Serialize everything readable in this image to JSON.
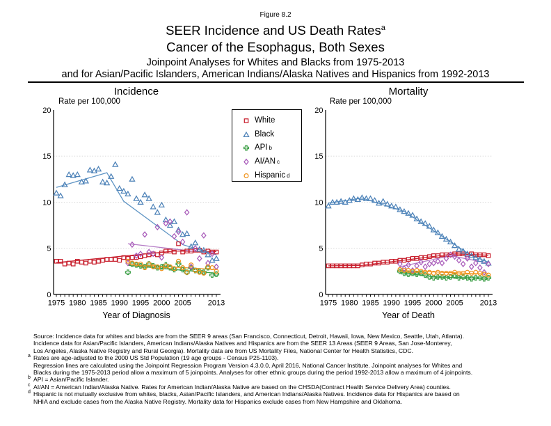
{
  "figure": {
    "label": "Figure 8.2",
    "title_line1": "SEER Incidence and US Death Rates",
    "title_sup": "a",
    "title_line2": "Cancer of the Esophagus, Both Sexes",
    "subtitle_line1": "Joinpoint Analyses for Whites and Blacks from 1975-2013",
    "subtitle_line2": "and for Asian/Pacific Islanders, American Indians/Alaska Natives and Hispanics from 1992-2013"
  },
  "legend": {
    "position": "top-center between charts",
    "items": [
      {
        "label": "White",
        "sup": "",
        "marker": "square",
        "color": "#c8202e"
      },
      {
        "label": "Black",
        "sup": "",
        "marker": "triangle",
        "color": "#4d82b8"
      },
      {
        "label": "API",
        "sup": "b",
        "marker": "plus",
        "color": "#3fa049"
      },
      {
        "label": "AI/AN",
        "sup": "c",
        "marker": "diamond",
        "color": "#a95cba"
      },
      {
        "label": "Hispanic",
        "sup": "d",
        "marker": "circle",
        "color": "#f0941f"
      }
    ]
  },
  "chart_data": [
    {
      "type": "scatter",
      "title": "Incidence",
      "ylabel": "Rate per 100,000",
      "xlabel": "Year of Diagnosis",
      "ylim": [
        0,
        20
      ],
      "yticks": [
        0,
        5,
        10,
        15,
        20
      ],
      "xlim": [
        1975,
        2013
      ],
      "xtick_labels": [
        1975,
        1980,
        1985,
        1990,
        1995,
        2000,
        2005,
        2013
      ],
      "grid": "horizontal dotted lines at 5, 10, 15",
      "series": [
        {
          "name": "White",
          "marker": "square",
          "color": "#c8202e",
          "start_year": 1975,
          "values": [
            3.6,
            3.6,
            3.3,
            3.4,
            3.3,
            3.6,
            3.5,
            3.4,
            3.6,
            3.5,
            3.6,
            3.7,
            3.8,
            3.8,
            3.8,
            3.7,
            4.0,
            3.9,
            4.0,
            4.0,
            4.1,
            4.2,
            4.3,
            4.4,
            4.3,
            4.5,
            4.7,
            4.7,
            4.6,
            5.5,
            4.6,
            4.7,
            4.7,
            4.8,
            4.8,
            4.6,
            4.7,
            4.6,
            4.6
          ]
        },
        {
          "name": "Black",
          "marker": "triangle",
          "color": "#4d82b8",
          "start_year": 1975,
          "values": [
            11.0,
            10.7,
            11.9,
            13.0,
            12.9,
            13.0,
            12.2,
            12.3,
            13.5,
            13.4,
            13.6,
            12.2,
            12.1,
            12.8,
            14.1,
            11.5,
            11.2,
            10.9,
            12.5,
            10.4,
            10.0,
            10.8,
            10.4,
            9.5,
            8.9,
            9.7,
            8.1,
            7.5,
            7.9,
            7.0,
            6.5,
            6.6,
            5.2,
            5.6,
            4.9,
            4.8,
            4.3,
            3.7,
            3.9
          ]
        },
        {
          "name": "API",
          "marker": "plus",
          "color": "#3fa049",
          "start_year": 1992,
          "values": [
            2.4,
            3.3,
            3.2,
            3.1,
            3.0,
            3.3,
            3.1,
            2.9,
            3.0,
            3.2,
            2.9,
            2.7,
            3.3,
            2.7,
            2.4,
            2.9,
            2.6,
            2.5,
            2.4,
            2.9,
            2.1,
            2.2
          ]
        },
        {
          "name": "AI/AN",
          "marker": "diamond",
          "color": "#a95cba",
          "start_year": 1992,
          "values": [
            3.4,
            5.4,
            4.2,
            4.4,
            6.5,
            4.6,
            4.4,
            7.3,
            4.0,
            7.7,
            7.9,
            6.3,
            6.8,
            5.7,
            8.9,
            3.0,
            5.0,
            3.9,
            6.4,
            3.4,
            4.4,
            3.0
          ]
        },
        {
          "name": "Hispanic",
          "marker": "circle",
          "color": "#f0941f",
          "start_year": 1992,
          "values": [
            3.6,
            3.4,
            3.3,
            3.3,
            2.9,
            3.3,
            3.0,
            3.0,
            2.8,
            3.1,
            3.0,
            2.8,
            3.6,
            2.9,
            2.4,
            3.2,
            2.6,
            2.4,
            2.3,
            3.0,
            2.9,
            2.5
          ]
        }
      ],
      "trend_lines": [
        {
          "name": "White joinpoint",
          "color": "#c8202e",
          "points": [
            [
              1975,
              3.45
            ],
            [
              2003,
              4.7
            ],
            [
              2013,
              4.65
            ]
          ]
        },
        {
          "name": "Black joinpoint",
          "color": "#5e94c4",
          "points": [
            [
              1975,
              11.6
            ],
            [
              1987,
              13.2
            ],
            [
              1991,
              10.1
            ],
            [
              2005,
              5.4
            ],
            [
              2013,
              4.3
            ]
          ]
        },
        {
          "name": "API joinpoint",
          "color": "#3fa049",
          "points": [
            [
              1992,
              3.15
            ],
            [
              2013,
              2.3
            ]
          ]
        },
        {
          "name": "AI/AN joinpoint",
          "color": "#b57cc6",
          "points": [
            [
              1992,
              5.5
            ],
            [
              2013,
              4.4
            ]
          ]
        },
        {
          "name": "Hispanic joinpoint",
          "color": "#f0941f",
          "points": [
            [
              1992,
              3.25
            ],
            [
              2013,
              2.7
            ]
          ]
        }
      ]
    },
    {
      "type": "scatter",
      "title": "Mortality",
      "ylabel": "Rate per 100,000",
      "xlabel": "Year of Death",
      "ylim": [
        0,
        20
      ],
      "yticks": [
        0,
        5,
        10,
        15,
        20
      ],
      "xlim": [
        1975,
        2013
      ],
      "xtick_labels": [
        1975,
        1980,
        1985,
        1990,
        1995,
        2000,
        2005,
        2013
      ],
      "grid": "horizontal dotted lines at 5, 10, 15",
      "series": [
        {
          "name": "White",
          "marker": "square",
          "color": "#c8202e",
          "start_year": 1975,
          "values": [
            3.1,
            3.1,
            3.1,
            3.1,
            3.1,
            3.1,
            3.1,
            3.1,
            3.2,
            3.3,
            3.3,
            3.4,
            3.4,
            3.5,
            3.5,
            3.6,
            3.6,
            3.7,
            3.7,
            3.8,
            3.9,
            3.9,
            4.0,
            4.0,
            4.1,
            4.2,
            4.2,
            4.3,
            4.3,
            4.3,
            4.4,
            4.4,
            4.4,
            4.3,
            4.4,
            4.3,
            4.3,
            4.3,
            4.2
          ]
        },
        {
          "name": "Black",
          "marker": "triangle",
          "color": "#4d82b8",
          "start_year": 1975,
          "values": [
            9.6,
            10.0,
            10.0,
            10.1,
            10.0,
            10.2,
            10.4,
            10.3,
            10.5,
            10.4,
            10.4,
            10.2,
            9.9,
            10.1,
            9.8,
            9.6,
            9.5,
            9.2,
            9.0,
            8.8,
            8.6,
            8.2,
            7.9,
            7.7,
            7.4,
            7.0,
            6.7,
            6.3,
            6.0,
            5.7,
            5.3,
            4.9,
            4.7,
            4.4,
            4.2,
            4.0,
            3.8,
            3.6,
            3.4
          ]
        },
        {
          "name": "API",
          "marker": "plus",
          "color": "#3fa049",
          "start_year": 1992,
          "values": [
            2.5,
            2.3,
            2.2,
            2.3,
            2.2,
            2.3,
            2.1,
            1.9,
            1.8,
            1.9,
            1.9,
            1.8,
            1.9,
            2.0,
            1.8,
            1.9,
            1.8,
            1.7,
            1.8,
            1.8,
            1.7,
            1.8
          ]
        },
        {
          "name": "AI/AN",
          "marker": "diamond",
          "color": "#a95cba",
          "start_year": 1992,
          "values": [
            3.3,
            2.8,
            3.2,
            2.6,
            3.1,
            3.5,
            3.0,
            3.3,
            3.4,
            3.6,
            3.4,
            3.9,
            4.3,
            4.1,
            3.7,
            3.3,
            3.9,
            3.0,
            3.4,
            2.9,
            2.4,
            3.3
          ]
        },
        {
          "name": "Hispanic",
          "marker": "circle",
          "color": "#f0941f",
          "start_year": 1992,
          "values": [
            2.7,
            2.6,
            2.6,
            2.5,
            2.6,
            2.5,
            2.4,
            2.4,
            2.3,
            2.4,
            2.3,
            2.3,
            2.3,
            2.4,
            2.3,
            2.3,
            2.4,
            2.3,
            2.4,
            2.3,
            2.2,
            2.1
          ]
        }
      ],
      "trend_lines": [
        {
          "name": "White joinpoint",
          "color": "#c8202e",
          "points": [
            [
              1975,
              3.1
            ],
            [
              1983,
              3.15
            ],
            [
              2005,
              4.4
            ],
            [
              2013,
              4.25
            ]
          ]
        },
        {
          "name": "Black joinpoint",
          "color": "#5e94c4",
          "points": [
            [
              1975,
              9.9
            ],
            [
              1983,
              10.45
            ],
            [
              1993,
              9.0
            ],
            [
              2009,
              4.2
            ],
            [
              2013,
              3.5
            ]
          ]
        },
        {
          "name": "API joinpoint",
          "color": "#3fa049",
          "points": [
            [
              1992,
              2.4
            ],
            [
              2000,
              1.9
            ],
            [
              2013,
              1.75
            ]
          ]
        },
        {
          "name": "AI/AN joinpoint",
          "color": "#b57cc6",
          "points": [
            [
              1992,
              3.0
            ],
            [
              2004,
              4.2
            ],
            [
              2013,
              3.4
            ]
          ]
        },
        {
          "name": "Hispanic joinpoint",
          "color": "#f0941f",
          "points": [
            [
              1992,
              2.6
            ],
            [
              2013,
              2.2
            ]
          ]
        }
      ]
    }
  ],
  "footnotes": [
    {
      "marker": "",
      "text": "Source:  Incidence data for whites and blacks are from the SEER 9 areas (San Francisco, Connecticut, Detroit, Hawaii, Iowa, New Mexico, Seattle, Utah, Atlanta)."
    },
    {
      "marker": "",
      "text": "Incidence data for Asian/Pacific Islanders, American Indians/Alaska Natives and Hispanics are from the SEER 13 Areas (SEER 9 Areas, San Jose-Monterey,"
    },
    {
      "marker": "",
      "text": "Los Angeles, Alaska Native Registry and Rural Georgia).  Mortality data are from US Mortality Files, National Center for Health Statistics, CDC."
    },
    {
      "marker": "a",
      "text": "Rates are age-adjusted to the 2000 US Std Population (19 age groups - Census P25-1103)."
    },
    {
      "marker": "",
      "text": "Regression lines are calculated using the Joinpoint Regression Program Version 4.3.0.0, April 2016, National Cancer Institute.  Joinpoint analyses for Whites and"
    },
    {
      "marker": "",
      "text": "Blacks during the 1975-2013 period allow a maximum of 5 joinpoints. Analyses for other ethnic groups during the period 1992-2013 allow a maximum of 4 joinpoints."
    },
    {
      "marker": "b",
      "text": "API = Asian/Pacific Islander."
    },
    {
      "marker": "c",
      "text": "AI/AN = American Indian/Alaska Native.  Rates for American Indian/Alaska Native are based on the CHSDA(Contract Health Service Delivery Area) counties."
    },
    {
      "marker": "d",
      "text": "Hispanic is not mutually exclusive from whites, blacks, Asian/Pacific Islanders, and American Indians/Alaska Natives.  Incidence data for Hispanics are based on"
    },
    {
      "marker": "",
      "text": "NHIA and exclude cases from the Alaska Native Registry.  Mortality data for Hispanics exclude cases from New Hampshire and Oklahoma."
    }
  ]
}
